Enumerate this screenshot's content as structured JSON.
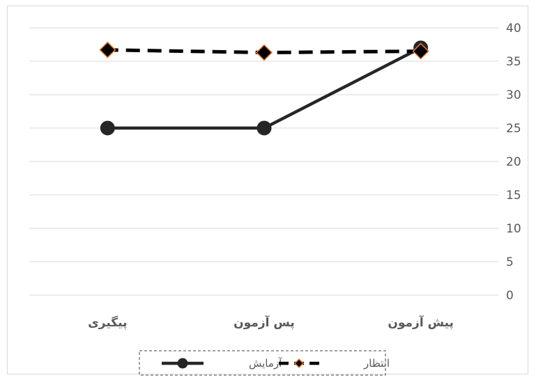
{
  "chart_data": {
    "type": "line",
    "categories": [
      "پیش آزمون",
      "پس آزمون",
      "پیگیری"
    ],
    "axis_order": "reversed",
    "y_axis_position": "right",
    "ylim": [
      0,
      40
    ],
    "yticks": [
      0,
      5,
      10,
      15,
      20,
      25,
      30,
      35,
      40
    ],
    "grid": true,
    "legend_position": "bottom",
    "series": [
      {
        "name": "آزمایش",
        "values": [
          37,
          25,
          25
        ],
        "line_style": "solid",
        "marker": "circle",
        "line_color": "#262626",
        "marker_color": "#262626"
      },
      {
        "name": "انتظار",
        "values": [
          36.5,
          36.3,
          36.7
        ],
        "line_style": "dashed",
        "marker": "diamond",
        "line_color": "#000000",
        "marker_color": "#000000",
        "marker_edge_color": "#ED7D31"
      }
    ]
  },
  "colors": {
    "grid": "#d9d9d9",
    "text": "#595959"
  }
}
